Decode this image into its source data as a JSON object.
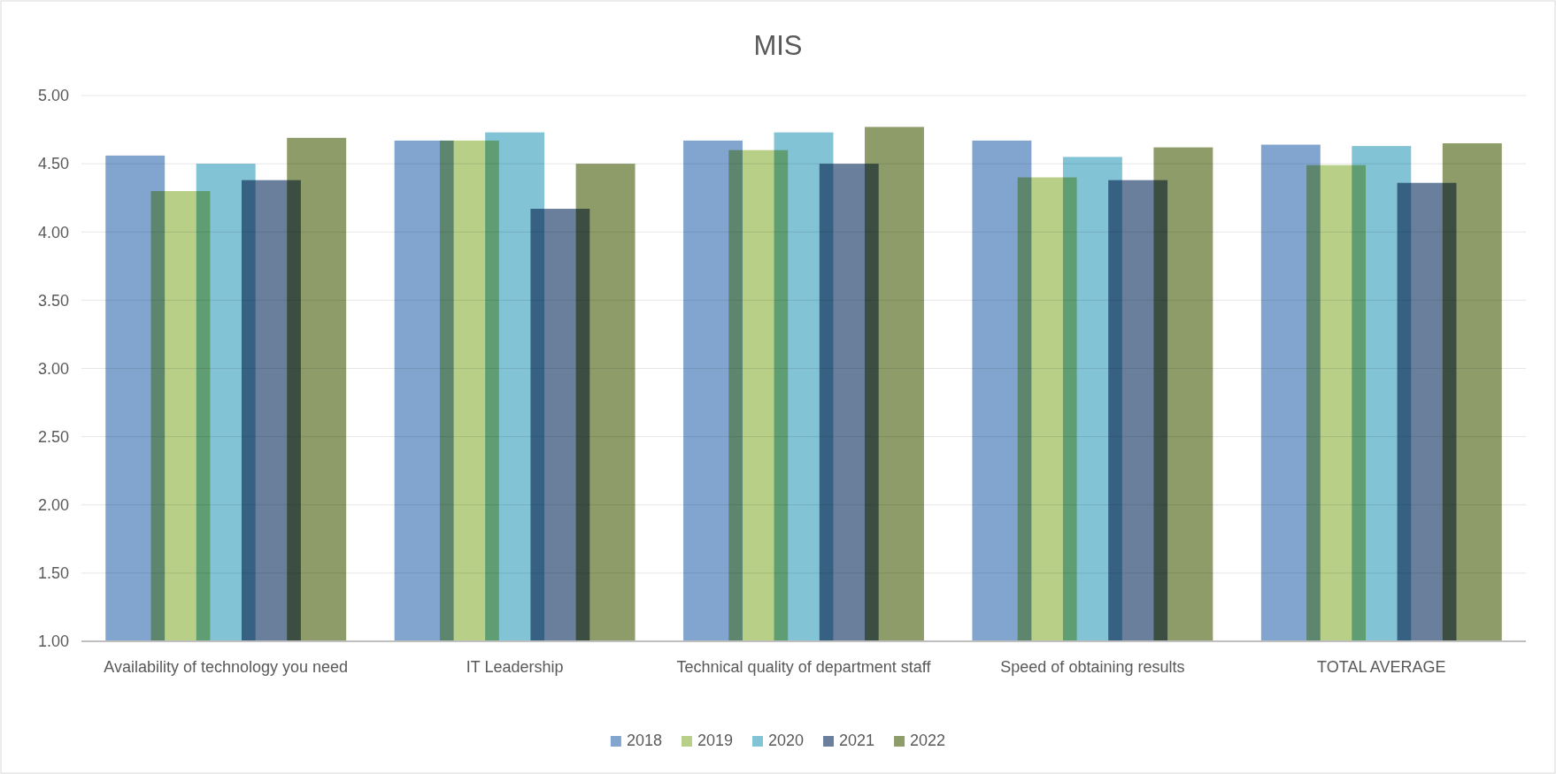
{
  "chart_data": {
    "type": "bar",
    "title": "MIS",
    "categories": [
      "Availability of technology you need",
      "IT Leadership",
      "Technical quality of department staff",
      "Speed of obtaining results",
      "TOTAL AVERAGE"
    ],
    "series": [
      {
        "name": "2018",
        "color": "#82a5d0",
        "values": [
          4.56,
          4.67,
          4.67,
          4.67,
          4.64
        ]
      },
      {
        "name": "2019",
        "color": "#b8cf88",
        "values": [
          4.3,
          4.67,
          4.6,
          4.4,
          4.49
        ]
      },
      {
        "name": "2020",
        "color": "#82c3d6",
        "values": [
          4.5,
          4.73,
          4.73,
          4.55,
          4.63
        ]
      },
      {
        "name": "2021",
        "color": "#6a7f9c",
        "values": [
          4.38,
          4.17,
          4.5,
          4.38,
          4.36
        ]
      },
      {
        "name": "2022",
        "color": "#8e9c6a",
        "values": [
          4.69,
          4.5,
          4.77,
          4.62,
          4.65
        ]
      }
    ],
    "ylim": [
      1,
      5
    ],
    "yticks": [
      {
        "value": 1,
        "label": "1.00"
      },
      {
        "value": 1.5,
        "label": "1.50"
      },
      {
        "value": 2,
        "label": "2.00"
      },
      {
        "value": 2.5,
        "label": "2.50"
      },
      {
        "value": 3,
        "label": "3.00"
      },
      {
        "value": 3.5,
        "label": "3.50"
      },
      {
        "value": 4,
        "label": "4.00"
      },
      {
        "value": 4.5,
        "label": "4.50"
      },
      {
        "value": 5,
        "label": "5.00"
      }
    ],
    "grid": "y",
    "legend": "bottom"
  }
}
